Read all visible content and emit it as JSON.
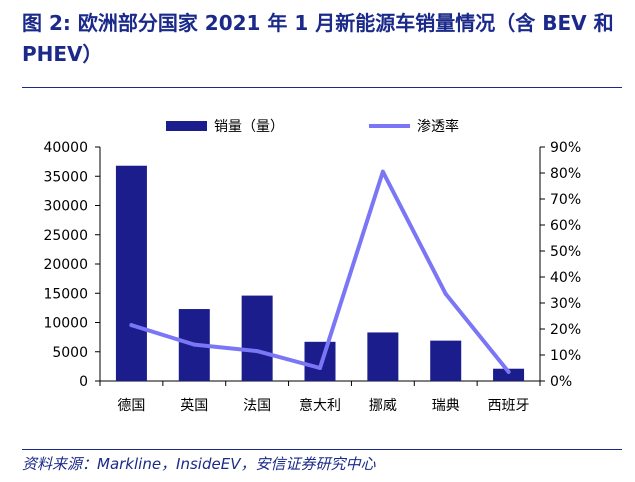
{
  "title": "图 2: 欧洲部分国家 2021 年 1 月新能源车销量情况（含 BEV 和 PHEV）",
  "source": "资料来源：Markline，InsideEV，安信证券研究中心",
  "colors": {
    "bar": "#1b1d8c",
    "line": "#7a76f5",
    "title": "#1b2a8a"
  },
  "chart_data": {
    "type": "bar",
    "categories": [
      "德国",
      "英国",
      "法国",
      "意大利",
      "挪威",
      "瑞典",
      "西班牙"
    ],
    "series": [
      {
        "name": "销量（量）",
        "type": "bar",
        "axis": "left",
        "values": [
          36800,
          12300,
          14600,
          6700,
          8300,
          6900,
          2100
        ]
      },
      {
        "name": "渗透率",
        "type": "line",
        "axis": "right",
        "values": [
          21.5,
          14,
          11.5,
          5,
          80.5,
          33.5,
          3.5
        ]
      }
    ],
    "y_left": {
      "min": 0,
      "max": 40000,
      "ticks": [
        "0",
        "5000",
        "10000",
        "15000",
        "20000",
        "25000",
        "30000",
        "35000",
        "40000"
      ]
    },
    "y_right": {
      "min": 0,
      "max": 90,
      "ticks": [
        "0%",
        "10%",
        "20%",
        "30%",
        "40%",
        "50%",
        "60%",
        "70%",
        "80%",
        "90%"
      ]
    },
    "legend_position": "top-center",
    "grid": false
  }
}
